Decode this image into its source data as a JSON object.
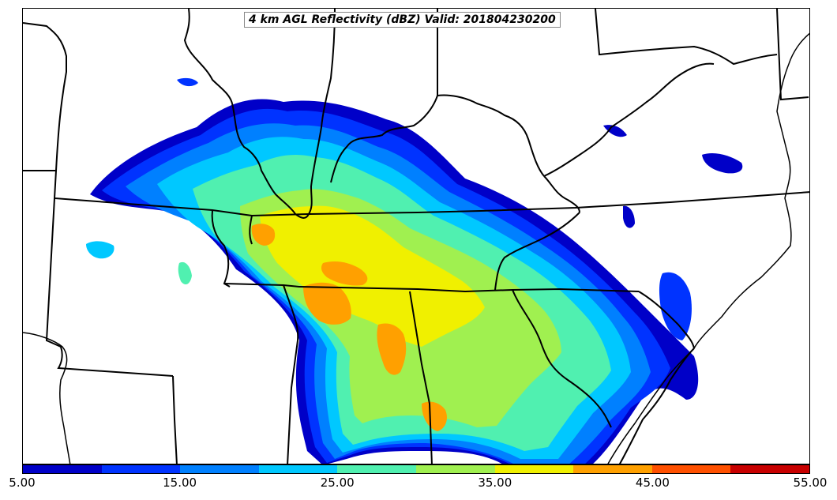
{
  "title": "4 km AGL Reflectivity (dBZ) Valid: 201804230200",
  "colorbar": {
    "min": 5,
    "max": 55,
    "step": 5,
    "colors": [
      "#0000c8",
      "#0033ff",
      "#0080ff",
      "#00c8ff",
      "#50f0b0",
      "#a0f050",
      "#f0f000",
      "#ffa000",
      "#ff5000",
      "#c80000"
    ],
    "tick_labels": [
      "5.00",
      "15.00",
      "25.00",
      "35.00",
      "45.00",
      "55.00"
    ]
  },
  "map": {
    "variable": "reflectivity",
    "units": "dBZ",
    "level": "4 km AGL",
    "boundaries": "US state lines and coastline"
  }
}
